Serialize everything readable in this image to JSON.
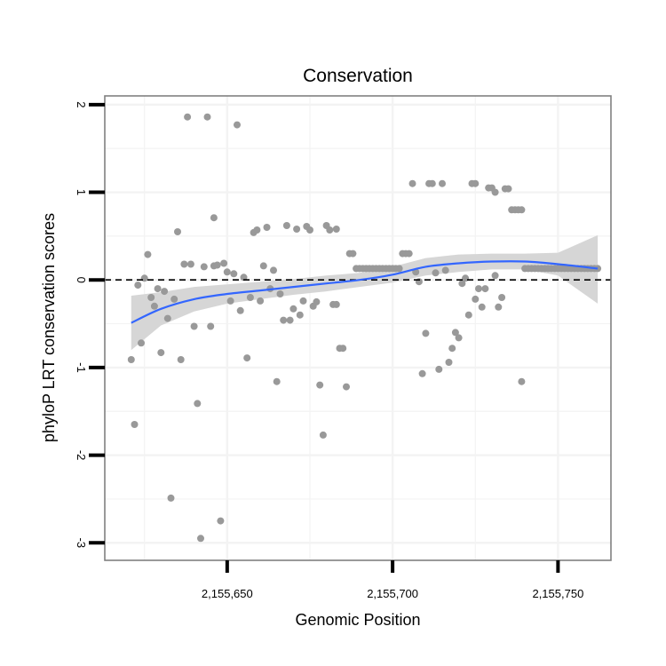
{
  "chart_data": {
    "type": "scatter",
    "title": "Conservation",
    "xlabel": "Genomic Position",
    "ylabel": "phyloP LRT conservation scores",
    "xlim": [
      2155613,
      2155766
    ],
    "ylim": [
      -3.2,
      2.1
    ],
    "x_ticks": [
      2155650,
      2155700,
      2155750
    ],
    "x_tick_labels": [
      "2,155,650",
      "2,155,700",
      "2,155,750"
    ],
    "y_ticks": [
      -3,
      -2,
      -1,
      0,
      1,
      2
    ],
    "y_tick_labels": [
      "-3",
      "-2",
      "-1",
      "0",
      "1",
      "2"
    ],
    "reference_line": {
      "y": 0,
      "style": "dashed",
      "color": "#000000"
    },
    "colors": {
      "points": "#999999",
      "smooth_line": "#3366ff",
      "confidence_band": "#d4d4d4",
      "panel_background": "#ffffff",
      "panel_border": "#808080",
      "grid_major": "#f3f3f3"
    },
    "points": [
      {
        "x": 2155621,
        "y": -0.91
      },
      {
        "x": 2155622,
        "y": -1.65
      },
      {
        "x": 2155623,
        "y": -0.06
      },
      {
        "x": 2155624,
        "y": -0.72
      },
      {
        "x": 2155625,
        "y": 0.02
      },
      {
        "x": 2155626,
        "y": 0.29
      },
      {
        "x": 2155627,
        "y": -0.2
      },
      {
        "x": 2155628,
        "y": -0.3
      },
      {
        "x": 2155629,
        "y": -0.1
      },
      {
        "x": 2155630,
        "y": -0.83
      },
      {
        "x": 2155631,
        "y": -0.13
      },
      {
        "x": 2155632,
        "y": -0.44
      },
      {
        "x": 2155633,
        "y": -2.49
      },
      {
        "x": 2155634,
        "y": -0.22
      },
      {
        "x": 2155635,
        "y": 0.55
      },
      {
        "x": 2155636,
        "y": -0.91
      },
      {
        "x": 2155637,
        "y": 0.18
      },
      {
        "x": 2155638,
        "y": 1.86
      },
      {
        "x": 2155639,
        "y": 0.18
      },
      {
        "x": 2155640,
        "y": -0.53
      },
      {
        "x": 2155641,
        "y": -1.41
      },
      {
        "x": 2155642,
        "y": -2.95
      },
      {
        "x": 2155643,
        "y": 0.15
      },
      {
        "x": 2155644,
        "y": 1.86
      },
      {
        "x": 2155645,
        "y": -0.53
      },
      {
        "x": 2155646,
        "y": 0.71
      },
      {
        "x": 2155646,
        "y": 0.16
      },
      {
        "x": 2155647,
        "y": 0.17
      },
      {
        "x": 2155648,
        "y": -2.75
      },
      {
        "x": 2155649,
        "y": 0.19
      },
      {
        "x": 2155650,
        "y": 0.09
      },
      {
        "x": 2155651,
        "y": -0.24
      },
      {
        "x": 2155652,
        "y": 0.07
      },
      {
        "x": 2155653,
        "y": 1.77
      },
      {
        "x": 2155654,
        "y": -0.35
      },
      {
        "x": 2155655,
        "y": 0.03
      },
      {
        "x": 2155656,
        "y": -0.89
      },
      {
        "x": 2155657,
        "y": -0.2
      },
      {
        "x": 2155658,
        "y": 0.54
      },
      {
        "x": 2155659,
        "y": 0.57
      },
      {
        "x": 2155660,
        "y": -0.24
      },
      {
        "x": 2155661,
        "y": 0.16
      },
      {
        "x": 2155662,
        "y": 0.6
      },
      {
        "x": 2155663,
        "y": -0.1
      },
      {
        "x": 2155664,
        "y": 0.11
      },
      {
        "x": 2155665,
        "y": -1.16
      },
      {
        "x": 2155666,
        "y": -0.16
      },
      {
        "x": 2155667,
        "y": -0.46
      },
      {
        "x": 2155668,
        "y": 0.62
      },
      {
        "x": 2155669,
        "y": -0.46
      },
      {
        "x": 2155670,
        "y": -0.33
      },
      {
        "x": 2155671,
        "y": 0.58
      },
      {
        "x": 2155672,
        "y": -0.4
      },
      {
        "x": 2155673,
        "y": -0.24
      },
      {
        "x": 2155674,
        "y": 0.61
      },
      {
        "x": 2155675,
        "y": 0.57
      },
      {
        "x": 2155676,
        "y": -0.3
      },
      {
        "x": 2155677,
        "y": -0.25
      },
      {
        "x": 2155678,
        "y": -1.2
      },
      {
        "x": 2155679,
        "y": -1.77
      },
      {
        "x": 2155680,
        "y": 0.62
      },
      {
        "x": 2155681,
        "y": 0.57
      },
      {
        "x": 2155682,
        "y": -0.28
      },
      {
        "x": 2155683,
        "y": -0.28
      },
      {
        "x": 2155683,
        "y": 0.58
      },
      {
        "x": 2155684,
        "y": -0.78
      },
      {
        "x": 2155685,
        "y": -0.78
      },
      {
        "x": 2155686,
        "y": -1.22
      },
      {
        "x": 2155687,
        "y": 0.3
      },
      {
        "x": 2155688,
        "y": 0.3
      },
      {
        "x": 2155689,
        "y": 0.13
      },
      {
        "x": 2155690,
        "y": 0.13
      },
      {
        "x": 2155691,
        "y": 0.13
      },
      {
        "x": 2155692,
        "y": 0.13
      },
      {
        "x": 2155693,
        "y": 0.13
      },
      {
        "x": 2155694,
        "y": 0.13
      },
      {
        "x": 2155695,
        "y": 0.13
      },
      {
        "x": 2155696,
        "y": 0.13
      },
      {
        "x": 2155697,
        "y": 0.13
      },
      {
        "x": 2155698,
        "y": 0.13
      },
      {
        "x": 2155699,
        "y": 0.13
      },
      {
        "x": 2155700,
        "y": 0.13
      },
      {
        "x": 2155701,
        "y": 0.13
      },
      {
        "x": 2155702,
        "y": 0.13
      },
      {
        "x": 2155703,
        "y": 0.3
      },
      {
        "x": 2155704,
        "y": 0.3
      },
      {
        "x": 2155705,
        "y": 0.3
      },
      {
        "x": 2155706,
        "y": 1.1
      },
      {
        "x": 2155707,
        "y": 0.09
      },
      {
        "x": 2155708,
        "y": -0.02
      },
      {
        "x": 2155709,
        "y": -1.07
      },
      {
        "x": 2155710,
        "y": -0.61
      },
      {
        "x": 2155711,
        "y": 1.1
      },
      {
        "x": 2155712,
        "y": 1.1
      },
      {
        "x": 2155713,
        "y": 0.08
      },
      {
        "x": 2155714,
        "y": -1.02
      },
      {
        "x": 2155715,
        "y": 1.1
      },
      {
        "x": 2155716,
        "y": 0.11
      },
      {
        "x": 2155717,
        "y": -0.94
      },
      {
        "x": 2155718,
        "y": -0.78
      },
      {
        "x": 2155719,
        "y": -0.6
      },
      {
        "x": 2155720,
        "y": -0.66
      },
      {
        "x": 2155721,
        "y": -0.04
      },
      {
        "x": 2155722,
        "y": 0.02
      },
      {
        "x": 2155723,
        "y": -0.4
      },
      {
        "x": 2155724,
        "y": 1.1
      },
      {
        "x": 2155725,
        "y": 1.1
      },
      {
        "x": 2155725,
        "y": -0.22
      },
      {
        "x": 2155726,
        "y": -0.1
      },
      {
        "x": 2155727,
        "y": -0.31
      },
      {
        "x": 2155728,
        "y": -0.1
      },
      {
        "x": 2155729,
        "y": 1.05
      },
      {
        "x": 2155730,
        "y": 1.05
      },
      {
        "x": 2155731,
        "y": 1.0
      },
      {
        "x": 2155731,
        "y": 0.05
      },
      {
        "x": 2155732,
        "y": -0.31
      },
      {
        "x": 2155733,
        "y": -0.2
      },
      {
        "x": 2155734,
        "y": 1.04
      },
      {
        "x": 2155735,
        "y": 1.04
      },
      {
        "x": 2155736,
        "y": 0.8
      },
      {
        "x": 2155737,
        "y": 0.8
      },
      {
        "x": 2155738,
        "y": 0.8
      },
      {
        "x": 2155739,
        "y": -1.16
      },
      {
        "x": 2155739,
        "y": 0.8
      },
      {
        "x": 2155740,
        "y": 0.13
      },
      {
        "x": 2155741,
        "y": 0.13
      },
      {
        "x": 2155742,
        "y": 0.13
      },
      {
        "x": 2155743,
        "y": 0.13
      },
      {
        "x": 2155744,
        "y": 0.13
      },
      {
        "x": 2155745,
        "y": 0.13
      },
      {
        "x": 2155746,
        "y": 0.13
      },
      {
        "x": 2155747,
        "y": 0.13
      },
      {
        "x": 2155748,
        "y": 0.13
      },
      {
        "x": 2155749,
        "y": 0.13
      },
      {
        "x": 2155750,
        "y": 0.13
      },
      {
        "x": 2155751,
        "y": 0.13
      },
      {
        "x": 2155752,
        "y": 0.13
      },
      {
        "x": 2155753,
        "y": 0.13
      },
      {
        "x": 2155754,
        "y": 0.13
      },
      {
        "x": 2155755,
        "y": 0.13
      },
      {
        "x": 2155756,
        "y": 0.13
      },
      {
        "x": 2155757,
        "y": 0.13
      },
      {
        "x": 2155758,
        "y": 0.13
      },
      {
        "x": 2155759,
        "y": 0.13
      },
      {
        "x": 2155760,
        "y": 0.13
      },
      {
        "x": 2155761,
        "y": 0.13
      },
      {
        "x": 2155762,
        "y": 0.13
      }
    ],
    "smooth": {
      "x": [
        2155621,
        2155630,
        2155640,
        2155650,
        2155660,
        2155670,
        2155680,
        2155690,
        2155700,
        2155710,
        2155720,
        2155730,
        2155740,
        2155750,
        2155762
      ],
      "y": [
        -0.49,
        -0.33,
        -0.22,
        -0.16,
        -0.12,
        -0.08,
        -0.04,
        0.0,
        0.06,
        0.15,
        0.19,
        0.21,
        0.21,
        0.18,
        0.13
      ],
      "lower": [
        -0.8,
        -0.52,
        -0.36,
        -0.27,
        -0.22,
        -0.17,
        -0.13,
        -0.08,
        -0.03,
        0.05,
        0.09,
        0.12,
        0.12,
        0.05,
        -0.27
      ],
      "upper": [
        -0.18,
        -0.14,
        -0.08,
        -0.05,
        -0.02,
        0.01,
        0.05,
        0.08,
        0.15,
        0.25,
        0.29,
        0.3,
        0.3,
        0.31,
        0.51
      ]
    }
  }
}
